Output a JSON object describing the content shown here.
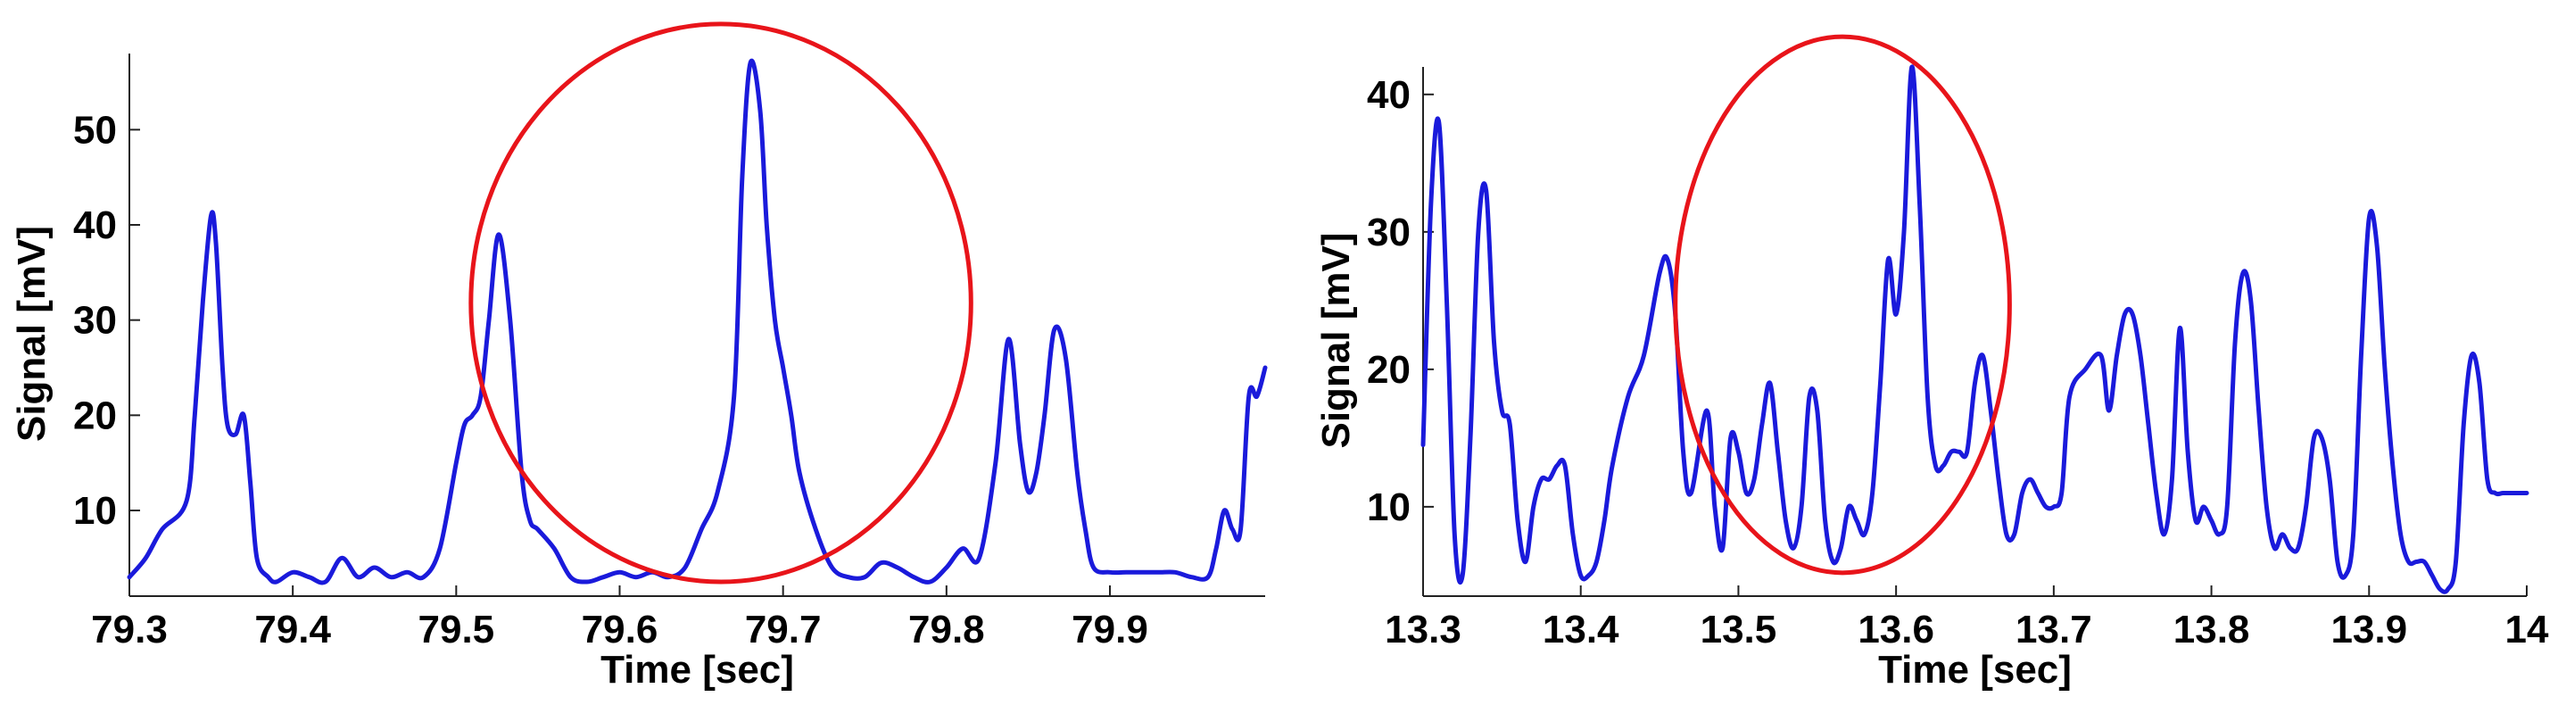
{
  "chart_data": [
    {
      "type": "line",
      "xlabel": "Time [sec]",
      "ylabel": "Signal [mV]",
      "xlim": [
        79.3,
        79.995
      ],
      "ylim": [
        1,
        58
      ],
      "xticks": [
        79.3,
        79.4,
        79.5,
        79.6,
        79.7,
        79.8,
        79.9
      ],
      "xtick_labels": [
        "79.3",
        "79.4",
        "79.5",
        "79.6",
        "79.7",
        "79.8",
        "79.9"
      ],
      "yticks": [
        10,
        20,
        30,
        40,
        50
      ],
      "ytick_labels": [
        "10",
        "20",
        "30",
        "40",
        "50"
      ],
      "grid": false,
      "line_color": "#1a1adb",
      "annotation": {
        "shape": "ellipse",
        "color": "#e8141a",
        "center": [
          79.662,
          31.8
        ],
        "radii": [
          0.153,
          29.3
        ]
      },
      "series": [
        {
          "x": [
            79.3,
            79.31,
            79.32,
            79.335,
            79.34,
            79.345,
            79.35,
            79.353,
            79.357,
            79.36,
            79.365,
            79.37,
            79.374,
            79.378,
            79.385,
            79.39,
            79.4,
            79.41,
            79.42,
            79.43,
            79.44,
            79.45,
            79.46,
            79.47,
            79.48,
            79.49,
            79.5,
            79.505,
            79.51,
            79.515,
            79.52,
            79.526,
            79.533,
            79.54,
            79.545,
            79.55,
            79.56,
            79.57,
            79.58,
            79.59,
            79.6,
            79.61,
            79.62,
            79.63,
            79.64,
            79.65,
            79.66,
            79.67,
            79.675,
            79.68,
            79.686,
            79.69,
            79.695,
            79.7,
            79.705,
            79.71,
            79.72,
            79.73,
            79.74,
            79.75,
            79.76,
            79.77,
            79.78,
            79.79,
            79.8,
            79.81,
            79.82,
            79.83,
            79.838,
            79.845,
            79.85,
            79.855,
            79.86,
            79.866,
            79.873,
            79.88,
            79.885,
            79.89,
            79.9,
            79.91,
            79.92,
            79.93,
            79.94,
            79.95,
            79.96,
            79.965,
            79.97,
            79.975,
            79.98,
            79.985,
            79.99,
            79.995
          ],
          "y": [
            3,
            5,
            8,
            11,
            20,
            32,
            41,
            38,
            25,
            19,
            18,
            20,
            13,
            5,
            3,
            2.5,
            3.5,
            3,
            2.5,
            5,
            3,
            4,
            3,
            3.5,
            3,
            6,
            15,
            19,
            20,
            22,
            30,
            39,
            30,
            14,
            9,
            8,
            6,
            3,
            2.5,
            3,
            3.5,
            3,
            3.5,
            3,
            4,
            8,
            12,
            22,
            45,
            57,
            52,
            40,
            30,
            25,
            20,
            14,
            8,
            4,
            3,
            3,
            4.5,
            4,
            3,
            2.5,
            4,
            6,
            5,
            15,
            28,
            17,
            12,
            14,
            20,
            29,
            26,
            14,
            8,
            4,
            3.5,
            3.5,
            3.5,
            3.5,
            3.5,
            3,
            3,
            6,
            10,
            8,
            8,
            22,
            22,
            25
          ]
        }
      ]
    },
    {
      "type": "line",
      "xlabel": "Time [sec]",
      "ylabel": "Signal [mV]",
      "xlim": [
        13.3,
        14.0
      ],
      "ylim": [
        3.5,
        42
      ],
      "xticks": [
        13.3,
        13.4,
        13.5,
        13.6,
        13.7,
        13.8,
        13.9,
        14.0
      ],
      "xtick_labels": [
        "13.3",
        "13.4",
        "13.5",
        "13.6",
        "13.7",
        "13.8",
        "13.9",
        "14"
      ],
      "yticks": [
        10,
        20,
        30,
        40
      ],
      "ytick_labels": [
        "10",
        "20",
        "30",
        "40"
      ],
      "grid": false,
      "line_color": "#1a1adb",
      "annotation": {
        "shape": "ellipse",
        "color": "#e8141a",
        "center": [
          13.566,
          24.7
        ],
        "radii": [
          0.106,
          19.5
        ]
      },
      "series": [
        {
          "x": [
            13.3,
            13.305,
            13.31,
            13.315,
            13.32,
            13.325,
            13.33,
            13.335,
            13.34,
            13.345,
            13.35,
            13.355,
            13.36,
            13.365,
            13.37,
            13.375,
            13.38,
            13.385,
            13.39,
            13.395,
            13.4,
            13.405,
            13.41,
            13.415,
            13.42,
            13.43,
            13.44,
            13.45,
            13.455,
            13.46,
            13.465,
            13.47,
            13.48,
            13.485,
            13.49,
            13.495,
            13.5,
            13.505,
            13.51,
            13.515,
            13.52,
            13.525,
            13.53,
            13.535,
            13.54,
            13.545,
            13.55,
            13.555,
            13.56,
            13.565,
            13.57,
            13.575,
            13.58,
            13.585,
            13.59,
            13.595,
            13.6,
            13.605,
            13.61,
            13.615,
            13.62,
            13.625,
            13.63,
            13.635,
            13.64,
            13.645,
            13.65,
            13.655,
            13.66,
            13.665,
            13.67,
            13.675,
            13.68,
            13.685,
            13.69,
            13.695,
            13.7,
            13.705,
            13.71,
            13.72,
            13.73,
            13.735,
            13.74,
            13.745,
            13.75,
            13.755,
            13.76,
            13.765,
            13.77,
            13.775,
            13.78,
            13.785,
            13.79,
            13.795,
            13.8,
            13.805,
            13.81,
            13.815,
            13.82,
            13.825,
            13.83,
            13.835,
            13.84,
            13.845,
            13.85,
            13.855,
            13.86,
            13.865,
            13.87,
            13.875,
            13.88,
            13.885,
            13.89,
            13.895,
            13.9,
            13.905,
            13.91,
            13.915,
            13.92,
            13.925,
            13.93,
            13.935,
            13.94,
            13.945,
            13.95,
            13.955,
            13.96,
            13.965,
            13.97,
            13.975,
            13.98,
            13.985,
            13.99,
            13.995,
            14.0
          ],
          "y": [
            14.5,
            32,
            38,
            25,
            8,
            5,
            15,
            30,
            33,
            22,
            17,
            16,
            9,
            6,
            10,
            12,
            12,
            13,
            13,
            8,
            5,
            5,
            6,
            9,
            13,
            18,
            21,
            27,
            28,
            24,
            14,
            11,
            17,
            10,
            7,
            15,
            14,
            11,
            12,
            16,
            19,
            14,
            9,
            7,
            10,
            18,
            17,
            9,
            6,
            7,
            10,
            9,
            8,
            11,
            19,
            28,
            24,
            30,
            42,
            32,
            18,
            13,
            13,
            14,
            14,
            14,
            19,
            21,
            17,
            12,
            8,
            8,
            11,
            12,
            11,
            10,
            10,
            11,
            18,
            20,
            21,
            17,
            21,
            24,
            24,
            21,
            16,
            11,
            8,
            12,
            23,
            14,
            9,
            10,
            9,
            8,
            10,
            22,
            27,
            25,
            17,
            10,
            7,
            8,
            7,
            7,
            10,
            15,
            15,
            12,
            6,
            5,
            8,
            21,
            31,
            29,
            20,
            13,
            8,
            6,
            6,
            6,
            5,
            4,
            4,
            6,
            16,
            21,
            19,
            12,
            11,
            11,
            11,
            11,
            11
          ]
        }
      ]
    }
  ]
}
